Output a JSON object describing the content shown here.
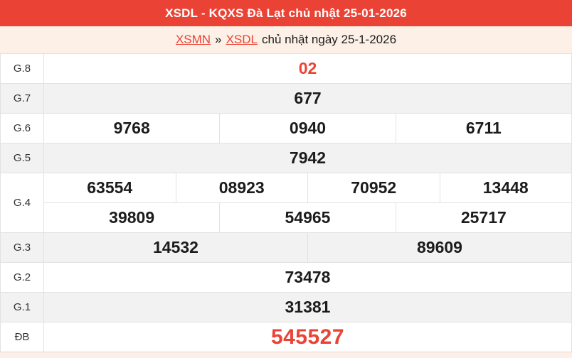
{
  "header": {
    "title": "XSDL - KQXS Đà Lạt chủ nhật 25-01-2026"
  },
  "breadcrumb": {
    "region_link": "XSMN",
    "separator": "»",
    "province_link": "XSDL",
    "date_text": "chủ nhật ngày 25-1-2026"
  },
  "colors": {
    "accent_red": "#ea4335",
    "breadcrumb_background": "#fdf0e6",
    "stripe_background": "#f2f2f2",
    "border": "#e2e2e2"
  },
  "results": {
    "rows": [
      {
        "label": "G.8",
        "highlight": true,
        "special": false,
        "lines": [
          [
            "02"
          ]
        ]
      },
      {
        "label": "G.7",
        "highlight": false,
        "special": false,
        "lines": [
          [
            "677"
          ]
        ]
      },
      {
        "label": "G.6",
        "highlight": false,
        "special": false,
        "lines": [
          [
            "9768",
            "0940",
            "6711"
          ]
        ]
      },
      {
        "label": "G.5",
        "highlight": false,
        "special": false,
        "lines": [
          [
            "7942"
          ]
        ]
      },
      {
        "label": "G.4",
        "highlight": false,
        "special": false,
        "lines": [
          [
            "63554",
            "08923",
            "70952",
            "13448"
          ],
          [
            "39809",
            "54965",
            "25717"
          ]
        ]
      },
      {
        "label": "G.3",
        "highlight": false,
        "special": false,
        "lines": [
          [
            "14532",
            "89609"
          ]
        ]
      },
      {
        "label": "G.2",
        "highlight": false,
        "special": false,
        "lines": [
          [
            "73478"
          ]
        ]
      },
      {
        "label": "G.1",
        "highlight": false,
        "special": false,
        "lines": [
          [
            "31381"
          ]
        ]
      },
      {
        "label": "ĐB",
        "highlight": false,
        "special": true,
        "lines": [
          [
            "545527"
          ]
        ]
      }
    ]
  }
}
